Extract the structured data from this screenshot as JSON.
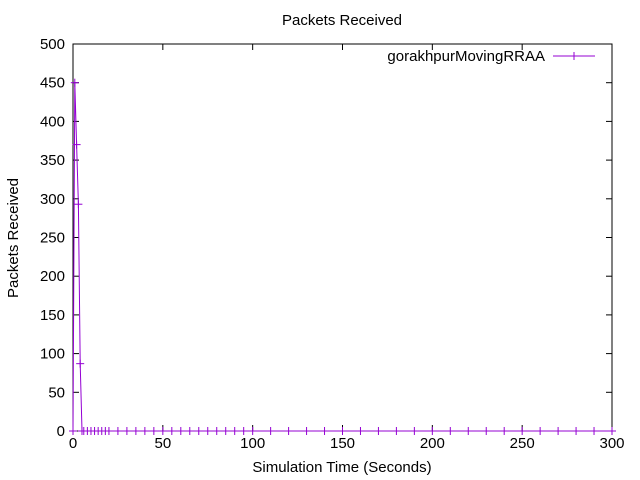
{
  "chart_data": {
    "type": "line",
    "title": "Packets Received",
    "xlabel": "Simulation Time (Seconds)",
    "ylabel": "Packets Received",
    "xlim": [
      0,
      300
    ],
    "ylim": [
      0,
      500
    ],
    "x_ticks": [
      0,
      50,
      100,
      150,
      200,
      250,
      300
    ],
    "y_ticks": [
      0,
      50,
      100,
      150,
      200,
      250,
      300,
      350,
      400,
      450,
      500
    ],
    "grid": false,
    "legend_position": "top-right",
    "series": [
      {
        "name": "gorakhpurMovingRRAA",
        "color": "#9400D3",
        "marker": "plus",
        "x": [
          0,
          1,
          2,
          3,
          4,
          5,
          6,
          8,
          10,
          12,
          14,
          16,
          18,
          20,
          25,
          30,
          35,
          40,
          45,
          50,
          55,
          60,
          65,
          70,
          75,
          80,
          85,
          90,
          95,
          100,
          110,
          120,
          130,
          140,
          150,
          160,
          170,
          180,
          190,
          200,
          210,
          220,
          230,
          240,
          250,
          260,
          270,
          280,
          290,
          300
        ],
        "y": [
          0,
          450,
          370,
          293,
          87,
          0,
          0,
          0,
          0,
          0,
          0,
          0,
          0,
          0,
          0,
          0,
          0,
          0,
          0,
          0,
          0,
          0,
          0,
          0,
          0,
          0,
          0,
          0,
          0,
          0,
          0,
          0,
          0,
          0,
          0,
          0,
          0,
          0,
          0,
          0,
          0,
          0,
          0,
          0,
          0,
          0,
          0,
          0,
          0,
          0
        ]
      }
    ]
  }
}
